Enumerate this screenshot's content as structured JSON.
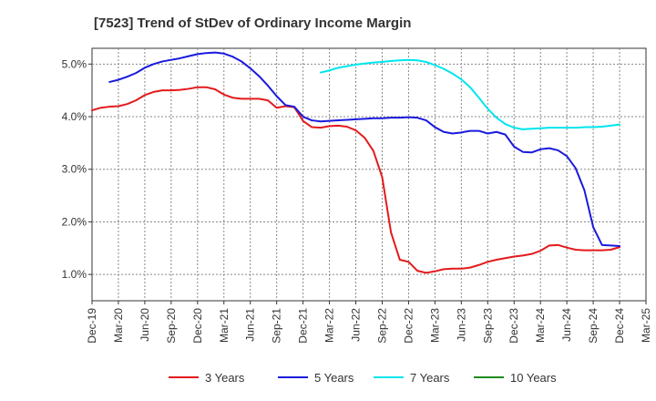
{
  "chart_data": {
    "type": "line",
    "title": "[7523]  Trend of StDev of Ordinary Income Margin",
    "xlabel": "",
    "ylabel": "",
    "x_ticks": [
      "Dec-19",
      "Mar-20",
      "Jun-20",
      "Sep-20",
      "Dec-20",
      "Mar-21",
      "Jun-21",
      "Sep-21",
      "Dec-21",
      "Mar-22",
      "Jun-22",
      "Sep-22",
      "Dec-22",
      "Mar-23",
      "Jun-23",
      "Sep-23",
      "Dec-23",
      "Mar-24",
      "Jun-24",
      "Sep-24",
      "Dec-24",
      "Mar-25"
    ],
    "y_ticks": [
      "1.0%",
      "2.0%",
      "3.0%",
      "4.0%",
      "5.0%"
    ],
    "ylim": [
      0.5,
      5.3
    ],
    "grid": true,
    "legend_position": "bottom",
    "series": [
      {
        "name": "3 Years",
        "color": "#e31a1c",
        "x": [
          "Dec-19",
          "Jan-20",
          "Feb-20",
          "Mar-20",
          "Apr-20",
          "May-20",
          "Jun-20",
          "Jul-20",
          "Aug-20",
          "Sep-20",
          "Oct-20",
          "Nov-20",
          "Dec-20",
          "Jan-21",
          "Feb-21",
          "Mar-21",
          "Apr-21",
          "May-21",
          "Jun-21",
          "Jul-21",
          "Aug-21",
          "Sep-21",
          "Oct-21",
          "Nov-21",
          "Dec-21",
          "Jan-22",
          "Feb-22",
          "Mar-22",
          "Apr-22",
          "May-22",
          "Jun-22",
          "Jul-22",
          "Aug-22",
          "Sep-22",
          "Oct-22",
          "Nov-22",
          "Dec-22",
          "Jan-23",
          "Feb-23",
          "Mar-23",
          "Apr-23",
          "May-23",
          "Jun-23",
          "Jul-23",
          "Aug-23",
          "Sep-23",
          "Oct-23",
          "Nov-23",
          "Dec-23",
          "Jan-24",
          "Feb-24",
          "Mar-24",
          "Apr-24",
          "May-24",
          "Jun-24",
          "Jul-24",
          "Aug-24",
          "Sep-24",
          "Oct-24",
          "Nov-24",
          "Dec-24"
        ],
        "values": [
          4.12,
          4.17,
          4.19,
          4.2,
          4.24,
          4.31,
          4.41,
          4.47,
          4.5,
          4.5,
          4.51,
          4.53,
          4.56,
          4.56,
          4.52,
          4.42,
          4.36,
          4.34,
          4.34,
          4.34,
          4.31,
          4.17,
          4.2,
          4.18,
          3.92,
          3.8,
          3.79,
          3.82,
          3.83,
          3.81,
          3.74,
          3.6,
          3.35,
          2.85,
          1.8,
          1.28,
          1.24,
          1.07,
          1.03,
          1.06,
          1.1,
          1.11,
          1.11,
          1.13,
          1.18,
          1.24,
          1.28,
          1.31,
          1.34,
          1.36,
          1.39,
          1.45,
          1.55,
          1.56,
          1.51,
          1.47,
          1.46,
          1.46,
          1.46,
          1.47,
          1.52
        ]
      },
      {
        "name": "5 Years",
        "color": "#1a1adc",
        "x": [
          "Feb-20",
          "Mar-20",
          "Apr-20",
          "May-20",
          "Jun-20",
          "Jul-20",
          "Aug-20",
          "Sep-20",
          "Oct-20",
          "Nov-20",
          "Dec-20",
          "Jan-21",
          "Feb-21",
          "Mar-21",
          "Apr-21",
          "May-21",
          "Jun-21",
          "Jul-21",
          "Aug-21",
          "Sep-21",
          "Oct-21",
          "Nov-21",
          "Dec-21",
          "Jan-22",
          "Feb-22",
          "Mar-22",
          "Apr-22",
          "May-22",
          "Jun-22",
          "Jul-22",
          "Aug-22",
          "Sep-22",
          "Oct-22",
          "Nov-22",
          "Dec-22",
          "Jan-23",
          "Feb-23",
          "Mar-23",
          "Apr-23",
          "May-23",
          "Jun-23",
          "Jul-23",
          "Aug-23",
          "Sep-23",
          "Oct-23",
          "Nov-23",
          "Dec-23",
          "Jan-24",
          "Feb-24",
          "Mar-24",
          "Apr-24",
          "May-24",
          "Jun-24",
          "Jul-24",
          "Aug-24",
          "Sep-24",
          "Oct-24",
          "Nov-24",
          "Dec-24"
        ],
        "values": [
          4.66,
          4.7,
          4.76,
          4.83,
          4.93,
          5.0,
          5.05,
          5.08,
          5.11,
          5.15,
          5.19,
          5.21,
          5.22,
          5.2,
          5.14,
          5.05,
          4.92,
          4.77,
          4.59,
          4.39,
          4.22,
          4.19,
          4.0,
          3.93,
          3.91,
          3.92,
          3.93,
          3.94,
          3.95,
          3.96,
          3.97,
          3.97,
          3.98,
          3.98,
          3.99,
          3.98,
          3.93,
          3.8,
          3.71,
          3.68,
          3.7,
          3.73,
          3.73,
          3.68,
          3.71,
          3.66,
          3.43,
          3.33,
          3.32,
          3.38,
          3.4,
          3.36,
          3.25,
          3.02,
          2.6,
          1.9,
          1.56,
          1.55,
          1.54
        ]
      },
      {
        "name": "7 Years",
        "color": "#00e5ee",
        "x": [
          "Feb-22",
          "Mar-22",
          "Apr-22",
          "May-22",
          "Jun-22",
          "Jul-22",
          "Aug-22",
          "Sep-22",
          "Oct-22",
          "Nov-22",
          "Dec-22",
          "Jan-23",
          "Feb-23",
          "Mar-23",
          "Apr-23",
          "May-23",
          "Jun-23",
          "Jul-23",
          "Aug-23",
          "Sep-23",
          "Oct-23",
          "Nov-23",
          "Dec-23",
          "Jan-24",
          "Feb-24",
          "Mar-24",
          "Apr-24",
          "May-24",
          "Jun-24",
          "Jul-24",
          "Aug-24",
          "Sep-24",
          "Oct-24",
          "Nov-24",
          "Dec-24"
        ],
        "values": [
          4.84,
          4.88,
          4.93,
          4.96,
          4.99,
          5.01,
          5.03,
          5.04,
          5.06,
          5.07,
          5.08,
          5.07,
          5.04,
          4.98,
          4.91,
          4.82,
          4.71,
          4.56,
          4.36,
          4.15,
          3.98,
          3.86,
          3.79,
          3.76,
          3.77,
          3.78,
          3.79,
          3.79,
          3.79,
          3.79,
          3.8,
          3.8,
          3.81,
          3.83,
          3.85
        ]
      },
      {
        "name": "10 Years",
        "color": "#1f8c1f",
        "x": [],
        "values": []
      }
    ]
  }
}
